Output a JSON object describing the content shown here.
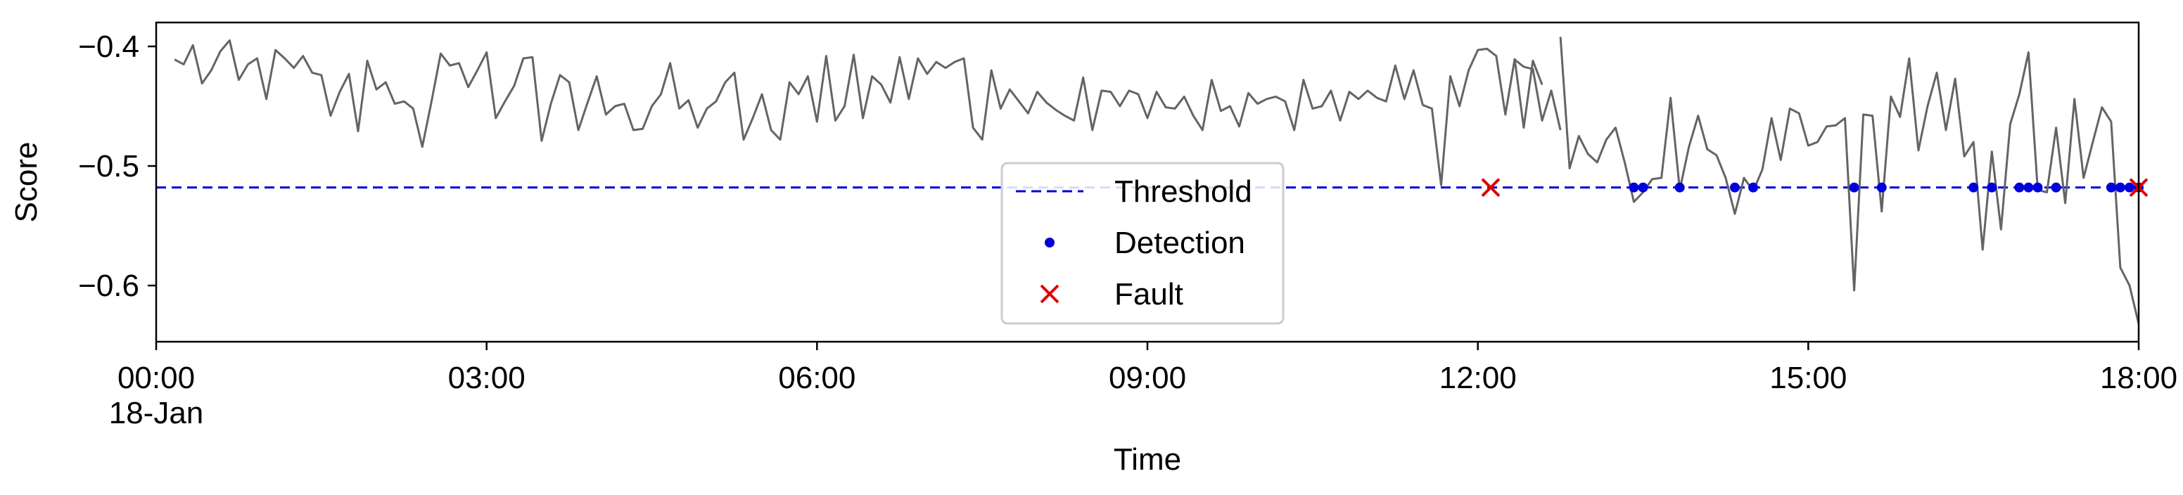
{
  "chart_data": {
    "type": "line",
    "title": "",
    "xlabel": "Time",
    "ylabel": "Score",
    "ylim": [
      -0.647,
      -0.38
    ],
    "xlim": [
      "18-Jan 00:00",
      "18-Jan 18:00"
    ],
    "grid": false,
    "legend_position": "lower-center",
    "x_ticks": [
      {
        "value": "00:00",
        "label": "00:00",
        "sublabel": "18-Jan"
      },
      {
        "value": "03:00",
        "label": "03:00",
        "sublabel": ""
      },
      {
        "value": "06:00",
        "label": "06:00",
        "sublabel": ""
      },
      {
        "value": "09:00",
        "label": "09:00",
        "sublabel": ""
      },
      {
        "value": "12:00",
        "label": "12:00",
        "sublabel": ""
      },
      {
        "value": "15:00",
        "label": "15:00",
        "sublabel": ""
      },
      {
        "value": "18:00",
        "label": "18:00",
        "sublabel": ""
      }
    ],
    "y_ticks": [
      {
        "value": -0.4,
        "label": "−0.4"
      },
      {
        "value": -0.5,
        "label": "−0.5"
      },
      {
        "value": -0.6,
        "label": "−0.6"
      }
    ],
    "threshold": {
      "name": "Threshold",
      "value": -0.518,
      "color": "#0000dd"
    },
    "score_series": {
      "color": "#646464",
      "segments": [
        {
          "start": "00:10",
          "step_minutes": 5,
          "values": [
            -0.411,
            -0.415,
            -0.399,
            -0.431,
            -0.42,
            -0.404,
            -0.395,
            -0.428,
            -0.415,
            -0.41,
            -0.444,
            -0.403,
            -0.41,
            -0.418,
            -0.408,
            -0.422,
            -0.424,
            -0.458,
            -0.438,
            -0.423,
            -0.471,
            -0.412,
            -0.436,
            -0.43,
            -0.448,
            -0.446,
            -0.452,
            -0.484,
            -0.446,
            -0.406,
            -0.416,
            -0.414,
            -0.434,
            -0.42,
            -0.405,
            -0.46,
            -0.446,
            -0.433,
            -0.41,
            -0.409,
            -0.479,
            -0.448,
            -0.424,
            -0.43,
            -0.47,
            -0.447,
            -0.425,
            -0.457,
            -0.45,
            -0.448,
            -0.47,
            -0.469,
            -0.45,
            -0.44,
            -0.414,
            -0.452,
            -0.445,
            -0.468,
            -0.452,
            -0.446,
            -0.43,
            -0.422,
            -0.478,
            -0.46,
            -0.44,
            -0.47,
            -0.478,
            -0.43,
            -0.44,
            -0.425,
            -0.463,
            -0.408,
            -0.462,
            -0.45,
            -0.407,
            -0.46,
            -0.425,
            -0.432,
            -0.447,
            -0.409,
            -0.444,
            -0.41,
            -0.423,
            -0.413,
            -0.418,
            -0.413,
            -0.41,
            -0.468,
            -0.478,
            -0.42,
            -0.452,
            -0.436,
            -0.446,
            -0.456,
            -0.438,
            -0.447,
            -0.453,
            -0.458,
            -0.462,
            -0.426,
            -0.47,
            -0.437,
            -0.438,
            -0.45,
            -0.437,
            -0.44,
            -0.46,
            -0.438,
            -0.451,
            -0.452,
            -0.442,
            -0.458,
            -0.47,
            -0.428,
            -0.454,
            -0.45,
            -0.467,
            -0.439,
            -0.448,
            -0.444,
            -0.442,
            -0.446,
            -0.47,
            -0.428,
            -0.452,
            -0.45,
            -0.437,
            -0.462,
            -0.438,
            -0.444,
            -0.437,
            -0.443,
            -0.446,
            -0.416,
            -0.444,
            -0.42,
            -0.449,
            -0.452,
            -0.516,
            -0.425,
            -0.45,
            -0.42,
            -0.403,
            -0.402,
            -0.408,
            -0.457,
            -0.411,
            -0.417,
            -0.419,
            -0.462,
            -0.437,
            -0.47
          ]
        },
        {
          "start": "12:20",
          "step_minutes": 5,
          "values": [
            -0.41,
            -0.468,
            -0.412,
            -0.432
          ]
        },
        {
          "start": "12:45",
          "step_minutes": 5,
          "values": [
            -0.392,
            -0.502,
            -0.475,
            -0.49,
            -0.497,
            -0.478,
            -0.468,
            -0.497,
            -0.53,
            -0.522,
            -0.511,
            -0.51,
            -0.443,
            -0.52,
            -0.484,
            -0.458,
            -0.486,
            -0.491,
            -0.51,
            -0.54,
            -0.51,
            -0.521,
            -0.503,
            -0.46,
            -0.495,
            -0.452,
            -0.456,
            -0.483,
            -0.48,
            -0.467,
            -0.466,
            -0.46,
            -0.604,
            -0.457,
            -0.458,
            -0.538,
            -0.442,
            -0.459,
            -0.41,
            -0.487,
            -0.45,
            -0.422,
            -0.47,
            -0.427,
            -0.492,
            -0.48,
            -0.57,
            -0.488,
            -0.553,
            -0.465,
            -0.44,
            -0.405,
            -0.52,
            -0.522,
            -0.468,
            -0.531,
            -0.444,
            -0.51,
            -0.48,
            -0.451,
            -0.463,
            -0.585,
            -0.6,
            -0.632
          ]
        }
      ]
    },
    "detections": {
      "name": "Detection",
      "color": "#0000dd",
      "times": [
        "13:25",
        "13:30",
        "13:50",
        "14:20",
        "14:30",
        "15:25",
        "15:40",
        "16:30",
        "16:40",
        "16:55",
        "17:00",
        "17:05",
        "17:15",
        "17:45",
        "17:50",
        "17:55",
        "18:00"
      ]
    },
    "faults": {
      "name": "Fault",
      "color": "#dd0000",
      "times": [
        "12:07",
        "18:00"
      ]
    },
    "legend": [
      {
        "label": "Threshold",
        "marker": "dashed-line",
        "color": "#0000dd"
      },
      {
        "label": "Detection",
        "marker": "dot",
        "color": "#0000dd"
      },
      {
        "label": "Fault",
        "marker": "x",
        "color": "#dd0000"
      }
    ]
  }
}
